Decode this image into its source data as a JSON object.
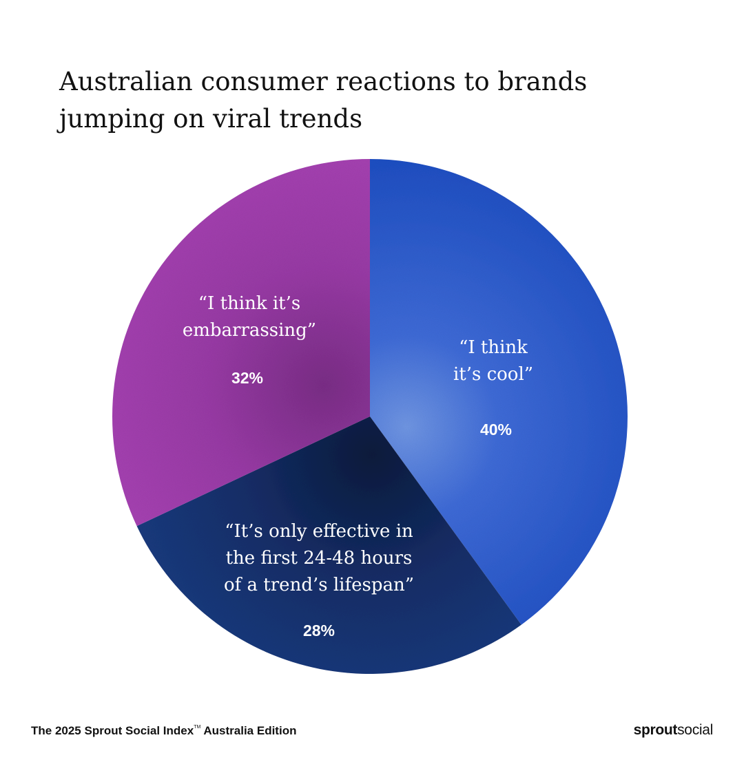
{
  "title_lines": [
    "Australian consumer reactions to brands",
    "jumping on viral trends"
  ],
  "chart_data": {
    "type": "pie",
    "title": "Australian consumer reactions to brands jumping on viral trends",
    "slices": [
      {
        "label_lines": [
          "“I think",
          "it’s cool”"
        ],
        "value": 40,
        "value_label": "40%",
        "color": "#2f5fd0"
      },
      {
        "label_lines": [
          "“It’s only effective in",
          "the first 24-48 hours",
          "of a trend’s lifespan”"
        ],
        "value": 28,
        "value_label": "28%",
        "color": "#15306a"
      },
      {
        "label_lines": [
          "“I think it’s",
          "embarrassing”"
        ],
        "value": 32,
        "value_label": "32%",
        "color": "#9a3ca6"
      }
    ]
  },
  "footer": {
    "text": "The 2025 Sprout Social Index",
    "tm": "TM",
    "edition": " Australia Edition"
  },
  "logo": {
    "bold": "sprout",
    "light": "social"
  }
}
